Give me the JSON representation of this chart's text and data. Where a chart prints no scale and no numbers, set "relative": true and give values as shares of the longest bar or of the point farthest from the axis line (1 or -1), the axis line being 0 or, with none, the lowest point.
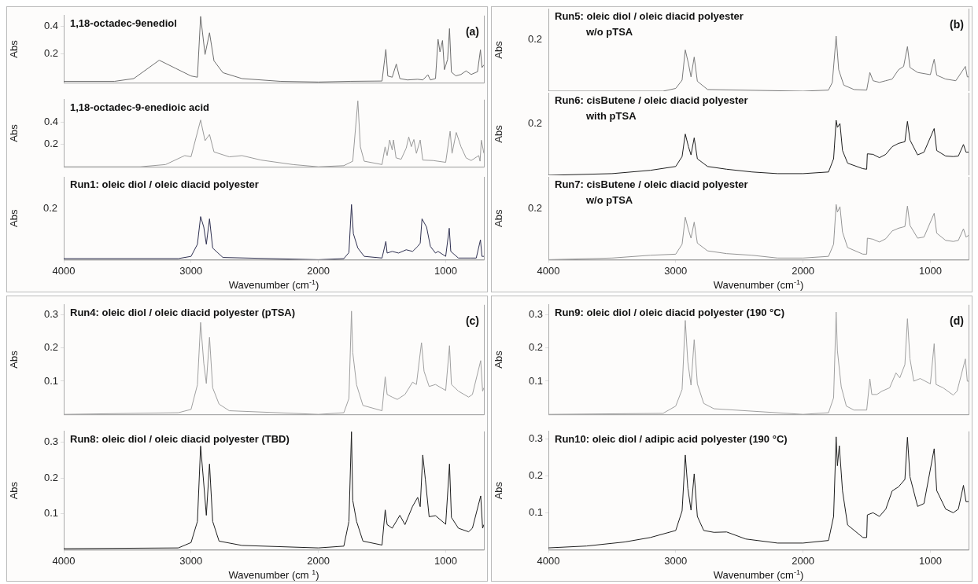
{
  "chart_data": [
    {
      "type": "line",
      "title": "1,18-octadec-9enediol",
      "ylabel": "Abs",
      "annotations": [
        "(a)"
      ],
      "marker": "none",
      "tick_labels": "y",
      "xlim": [
        4000,
        700
      ],
      "xticks": [
        4000,
        3000,
        2000,
        1000
      ],
      "ylim": [
        -0.01,
        0.48
      ],
      "yticks": [
        0.2,
        0.4
      ],
      "x": [
        4000,
        3600,
        3450,
        3250,
        3120,
        3000,
        2950,
        2925,
        2890,
        2855,
        2820,
        2750,
        2600,
        2300,
        2000,
        1750,
        1500,
        1470,
        1455,
        1420,
        1388,
        1360,
        1300,
        1220,
        1180,
        1140,
        1120,
        1080,
        1060,
        1045,
        1025,
        1010,
        985,
        970,
        955,
        920,
        880,
        840,
        800,
        750,
        727,
        715,
        700
      ],
      "series": [
        {
          "color": "#6e6e6e",
          "values": [
            0.0,
            0.0,
            0.02,
            0.154,
            0.094,
            0.039,
            0.03,
            0.474,
            0.196,
            0.354,
            0.15,
            0.063,
            0.02,
            0.0,
            -0.005,
            0.0,
            0.002,
            0.233,
            0.039,
            0.03,
            0.126,
            0.02,
            0.01,
            0.015,
            0.01,
            0.048,
            0.01,
            0.02,
            0.307,
            0.215,
            0.298,
            0.085,
            0.16,
            0.385,
            0.067,
            0.04,
            0.05,
            0.076,
            0.05,
            0.07,
            0.23,
            0.1,
            0.12
          ]
        }
      ]
    },
    {
      "type": "line",
      "title": "1,18-octadec-9-enedioic acid",
      "ylabel": "Abs",
      "marker": "none",
      "tick_labels": "y",
      "xlim": [
        4000,
        700
      ],
      "xticks": [
        4000,
        3000,
        2000,
        1000
      ],
      "ylim": [
        0,
        0.6
      ],
      "yticks": [
        0.2,
        0.4
      ],
      "x": [
        4000,
        3400,
        3200,
        3050,
        3000,
        2925,
        2890,
        2855,
        2820,
        2700,
        2600,
        2450,
        2200,
        2000,
        1800,
        1730,
        1690,
        1670,
        1640,
        1500,
        1476,
        1460,
        1440,
        1420,
        1410,
        1390,
        1350,
        1310,
        1290,
        1270,
        1250,
        1230,
        1200,
        1180,
        1100,
        1000,
        965,
        950,
        917,
        880,
        840,
        800,
        740,
        730,
        720,
        700
      ],
      "series": [
        {
          "color": "#9a9a9a",
          "values": [
            0.0,
            0.0,
            0.02,
            0.1,
            0.09,
            0.418,
            0.233,
            0.289,
            0.133,
            0.089,
            0.1,
            0.06,
            0.02,
            0.0,
            0.01,
            0.05,
            0.589,
            0.178,
            0.05,
            0.02,
            0.178,
            0.1,
            0.24,
            0.15,
            0.24,
            0.08,
            0.067,
            0.167,
            0.267,
            0.18,
            0.244,
            0.12,
            0.24,
            0.06,
            0.056,
            0.04,
            0.318,
            0.12,
            0.307,
            0.18,
            0.08,
            0.056,
            0.1,
            0.05,
            0.238,
            0.12
          ]
        }
      ]
    },
    {
      "type": "line",
      "title": "Run1: oleic diol / oleic diacid polyester",
      "ylabel": "Abs",
      "xlabel": "Wavenumber (cm$^{-1}$)",
      "annotations": [
        "0.2"
      ],
      "relative": true,
      "marker": "none",
      "xlim": [
        4000,
        700
      ],
      "xticks": [
        4000,
        3000,
        2000,
        1000
      ],
      "x": [
        4000,
        3100,
        3000,
        2950,
        2925,
        2900,
        2880,
        2855,
        2830,
        2750,
        2000,
        1800,
        1760,
        1740,
        1725,
        1690,
        1640,
        1500,
        1470,
        1460,
        1420,
        1370,
        1310,
        1260,
        1220,
        1200,
        1186,
        1150,
        1120,
        1080,
        1060,
        1000,
        972,
        960,
        900,
        800,
        760,
        727,
        715,
        700
      ],
      "series": [
        {
          "color": "#2f3050",
          "values": [
            0.02,
            0.02,
            0.06,
            0.28,
            0.78,
            0.59,
            0.28,
            0.74,
            0.21,
            0.04,
            0.0,
            0.02,
            0.13,
            1,
            0.47,
            0.21,
            0.06,
            0.03,
            0.33,
            0.12,
            0.15,
            0.12,
            0.18,
            0.15,
            0.24,
            0.3,
            0.74,
            0.59,
            0.24,
            0.12,
            0.15,
            0.06,
            0.57,
            0.15,
            0.03,
            0.03,
            0.03,
            0.36,
            0.06,
            0.06
          ]
        }
      ]
    },
    {
      "type": "line",
      "title": "Run5: oleic diol / oleic diacid polyester",
      "subtitle": "w/o pTSA",
      "ylabel": "Abs",
      "annotations": [
        "0.2",
        "(b)"
      ],
      "relative": true,
      "marker": "none",
      "tick_labels": "y",
      "xlim": [
        4000,
        700
      ],
      "xticks": [
        4000,
        3000,
        2000,
        1000
      ],
      "x": [
        4000,
        3100,
        3000,
        2950,
        2925,
        2900,
        2880,
        2855,
        2830,
        2750,
        2000,
        1800,
        1770,
        1740,
        1720,
        1680,
        1600,
        1500,
        1475,
        1450,
        1400,
        1350,
        1300,
        1250,
        1210,
        1180,
        1160,
        1100,
        1000,
        970,
        950,
        880,
        800,
        725,
        710,
        700
      ],
      "series": [
        {
          "color": "#7a7a7a",
          "values": [
            0,
            0,
            0.05,
            0.2,
            0.75,
            0.5,
            0.26,
            0.62,
            0.18,
            0.03,
            0,
            0.02,
            0.16,
            1,
            0.39,
            0.11,
            0.03,
            0.02,
            0.34,
            0.19,
            0.16,
            0.19,
            0.22,
            0.39,
            0.45,
            0.81,
            0.43,
            0.34,
            0.3,
            0.58,
            0.29,
            0.22,
            0.19,
            0.45,
            0.26,
            0.26
          ]
        }
      ]
    },
    {
      "type": "line",
      "title": "Run6: cisButene / oleic diacid polyester",
      "subtitle": "with pTSA",
      "ylabel": "Abs",
      "annotations": [
        "0.2"
      ],
      "relative": true,
      "marker": "none",
      "tick_labels": "y",
      "xlim": [
        4000,
        700
      ],
      "xticks": [
        4000,
        3000,
        2000,
        1000
      ],
      "x": [
        4000,
        3500,
        3200,
        3000,
        2950,
        2925,
        2900,
        2880,
        2855,
        2830,
        2750,
        2600,
        2400,
        2200,
        2000,
        1800,
        1760,
        1740,
        1730,
        1710,
        1690,
        1650,
        1530,
        1500,
        1495,
        1450,
        1400,
        1350,
        1300,
        1250,
        1200,
        1180,
        1160,
        1100,
        1050,
        970,
        950,
        880,
        820,
        780,
        740,
        720,
        700
      ],
      "series": [
        {
          "color": "#1e1e1e",
          "values": [
            0,
            0.03,
            0.09,
            0.16,
            0.34,
            0.75,
            0.52,
            0.37,
            0.68,
            0.3,
            0.16,
            0.11,
            0.06,
            0.03,
            0.03,
            0.06,
            0.3,
            1,
            0.87,
            0.94,
            0.45,
            0.22,
            0.12,
            0.11,
            0.39,
            0.38,
            0.32,
            0.38,
            0.52,
            0.58,
            0.61,
            0.98,
            0.64,
            0.37,
            0.42,
            0.85,
            0.45,
            0.35,
            0.34,
            0.35,
            0.56,
            0.42,
            0.42
          ]
        }
      ]
    },
    {
      "type": "line",
      "title": "Run7: cisButene / oleic diacid polyester",
      "subtitle": "w/o pTSA",
      "ylabel": "Abs",
      "xlabel": "Wavenumber (cm$^{-1}$)",
      "annotations": [
        "0.2"
      ],
      "relative": true,
      "marker": "none",
      "xlim": [
        4000,
        700
      ],
      "xticks": [
        4000,
        3000,
        2000,
        1000
      ],
      "x": [
        4000,
        3500,
        3200,
        3000,
        2950,
        2925,
        2900,
        2880,
        2855,
        2830,
        2750,
        2600,
        2400,
        2200,
        2000,
        1800,
        1760,
        1740,
        1730,
        1710,
        1690,
        1650,
        1530,
        1500,
        1495,
        1450,
        1400,
        1350,
        1300,
        1250,
        1200,
        1180,
        1160,
        1100,
        1050,
        970,
        950,
        880,
        820,
        780,
        740,
        720,
        700
      ],
      "series": [
        {
          "color": "#959595",
          "values": [
            0,
            0.03,
            0.08,
            0.1,
            0.28,
            0.77,
            0.54,
            0.39,
            0.68,
            0.3,
            0.16,
            0.11,
            0.08,
            0.03,
            0.03,
            0.06,
            0.28,
            1,
            0.86,
            0.96,
            0.5,
            0.22,
            0.1,
            0.1,
            0.39,
            0.37,
            0.32,
            0.38,
            0.52,
            0.57,
            0.6,
            0.97,
            0.62,
            0.39,
            0.41,
            0.84,
            0.48,
            0.35,
            0.33,
            0.35,
            0.56,
            0.41,
            0.44
          ]
        }
      ]
    },
    {
      "type": "line",
      "title": "Run4: oleic diol / oleic diacid polyester (pTSA)",
      "ylabel": "Abs",
      "annotations": [
        "(c)"
      ],
      "marker": "none",
      "tick_labels": "y",
      "xlim": [
        4000,
        700
      ],
      "xticks": [
        4000,
        3000,
        2000,
        1000
      ],
      "ylim": [
        0,
        0.33
      ],
      "yticks": [
        0.1,
        0.2,
        0.3
      ],
      "x": [
        4000,
        3100,
        3000,
        2950,
        2925,
        2900,
        2880,
        2855,
        2830,
        2780,
        2700,
        2000,
        1800,
        1760,
        1740,
        1730,
        1700,
        1650,
        1500,
        1475,
        1460,
        1420,
        1380,
        1320,
        1260,
        1230,
        1190,
        1170,
        1130,
        1080,
        1000,
        970,
        955,
        900,
        820,
        790,
        725,
        710,
        700
      ],
      "series": [
        {
          "color": "#a0a0a0",
          "values": [
            0.0,
            0.005,
            0.015,
            0.089,
            0.277,
            0.154,
            0.093,
            0.232,
            0.08,
            0.031,
            0.011,
            0.0,
            0.005,
            0.048,
            0.311,
            0.187,
            0.089,
            0.027,
            0.011,
            0.113,
            0.06,
            0.052,
            0.045,
            0.06,
            0.097,
            0.09,
            0.216,
            0.13,
            0.084,
            0.09,
            0.072,
            0.207,
            0.09,
            0.07,
            0.052,
            0.06,
            0.162,
            0.07,
            0.08
          ]
        }
      ]
    },
    {
      "type": "line",
      "title": "Run8: oleic diol / oleic diacid polyester (TBD)",
      "ylabel": "Abs",
      "xlabel": "Wavenumber (cm $^{1}$)",
      "marker": "none",
      "xlim": [
        4000,
        700
      ],
      "xticks": [
        4000,
        3000,
        2000,
        1000
      ],
      "ylim": [
        0,
        0.33
      ],
      "yticks": [
        0.1,
        0.2,
        0.3
      ],
      "x": [
        4000,
        3100,
        3000,
        2950,
        2925,
        2905,
        2880,
        2855,
        2830,
        2780,
        2600,
        2000,
        1800,
        1760,
        1740,
        1730,
        1700,
        1650,
        1500,
        1475,
        1460,
        1420,
        1360,
        1320,
        1260,
        1220,
        1200,
        1180,
        1160,
        1130,
        1080,
        1000,
        970,
        955,
        900,
        820,
        790,
        725,
        710,
        700
      ],
      "series": [
        {
          "color": "#1e1e1e",
          "values": [
            0.003,
            0.005,
            0.02,
            0.079,
            0.289,
            0.205,
            0.096,
            0.239,
            0.079,
            0.024,
            0.012,
            0.005,
            0.01,
            0.079,
            0.329,
            0.138,
            0.079,
            0.024,
            0.013,
            0.111,
            0.07,
            0.06,
            0.096,
            0.07,
            0.121,
            0.146,
            0.12,
            0.264,
            0.197,
            0.092,
            0.095,
            0.071,
            0.239,
            0.09,
            0.06,
            0.05,
            0.06,
            0.15,
            0.06,
            0.07
          ]
        }
      ]
    },
    {
      "type": "line",
      "title": "Run9: oleic diol / oleic diacid polyester (190 °C)",
      "ylabel": "Abs",
      "annotations": [
        "(d)"
      ],
      "marker": "none",
      "tick_labels": "y",
      "xlim": [
        4000,
        700
      ],
      "xticks": [
        4000,
        3000,
        2000,
        1000
      ],
      "ylim": [
        0,
        0.33
      ],
      "yticks": [
        0.1,
        0.2,
        0.3
      ],
      "x": [
        4000,
        3100,
        3000,
        2950,
        2925,
        2905,
        2880,
        2855,
        2830,
        2780,
        2700,
        2000,
        1800,
        1760,
        1740,
        1730,
        1700,
        1660,
        1600,
        1500,
        1475,
        1460,
        1420,
        1380,
        1320,
        1270,
        1240,
        1200,
        1180,
        1160,
        1130,
        1080,
        1000,
        970,
        955,
        900,
        820,
        790,
        725,
        710,
        700
      ],
      "series": [
        {
          "color": "#a0a0a0",
          "values": [
            0.0,
            0.003,
            0.025,
            0.075,
            0.283,
            0.158,
            0.088,
            0.225,
            0.092,
            0.033,
            0.017,
            0.0,
            0.005,
            0.05,
            0.308,
            0.192,
            0.083,
            0.025,
            0.013,
            0.013,
            0.107,
            0.06,
            0.06,
            0.07,
            0.08,
            0.125,
            0.11,
            0.15,
            0.288,
            0.167,
            0.1,
            0.108,
            0.092,
            0.213,
            0.09,
            0.08,
            0.058,
            0.07,
            0.167,
            0.1,
            0.1
          ]
        }
      ]
    },
    {
      "type": "line",
      "title": "Run10: oleic diol / adipic acid polyester (190 °C)",
      "ylabel": "Abs",
      "xlabel": "Wavenumber (cm$^{-1}$)",
      "marker": "none",
      "xlim": [
        4000,
        700
      ],
      "xticks": [
        4000,
        3000,
        2000,
        1000
      ],
      "ylim": [
        0,
        0.32
      ],
      "yticks": [
        0.1,
        0.2,
        0.3
      ],
      "x": [
        4000,
        3700,
        3400,
        3200,
        3000,
        2950,
        2925,
        2905,
        2880,
        2855,
        2830,
        2780,
        2700,
        2600,
        2450,
        2200,
        2000,
        1800,
        1760,
        1740,
        1730,
        1715,
        1690,
        1650,
        1530,
        1500,
        1495,
        1450,
        1400,
        1350,
        1300,
        1250,
        1200,
        1180,
        1160,
        1100,
        1050,
        970,
        950,
        880,
        820,
        780,
        740,
        720,
        700
      ],
      "series": [
        {
          "color": "#1e1e1e",
          "values": [
            0.005,
            0.01,
            0.021,
            0.033,
            0.052,
            0.105,
            0.256,
            0.166,
            0.107,
            0.205,
            0.09,
            0.052,
            0.047,
            0.048,
            0.029,
            0.018,
            0.018,
            0.025,
            0.09,
            0.305,
            0.227,
            0.281,
            0.159,
            0.067,
            0.033,
            0.033,
            0.094,
            0.1,
            0.09,
            0.11,
            0.159,
            0.17,
            0.19,
            0.304,
            0.197,
            0.117,
            0.125,
            0.273,
            0.16,
            0.11,
            0.1,
            0.11,
            0.174,
            0.13,
            0.13
          ]
        }
      ]
    }
  ]
}
